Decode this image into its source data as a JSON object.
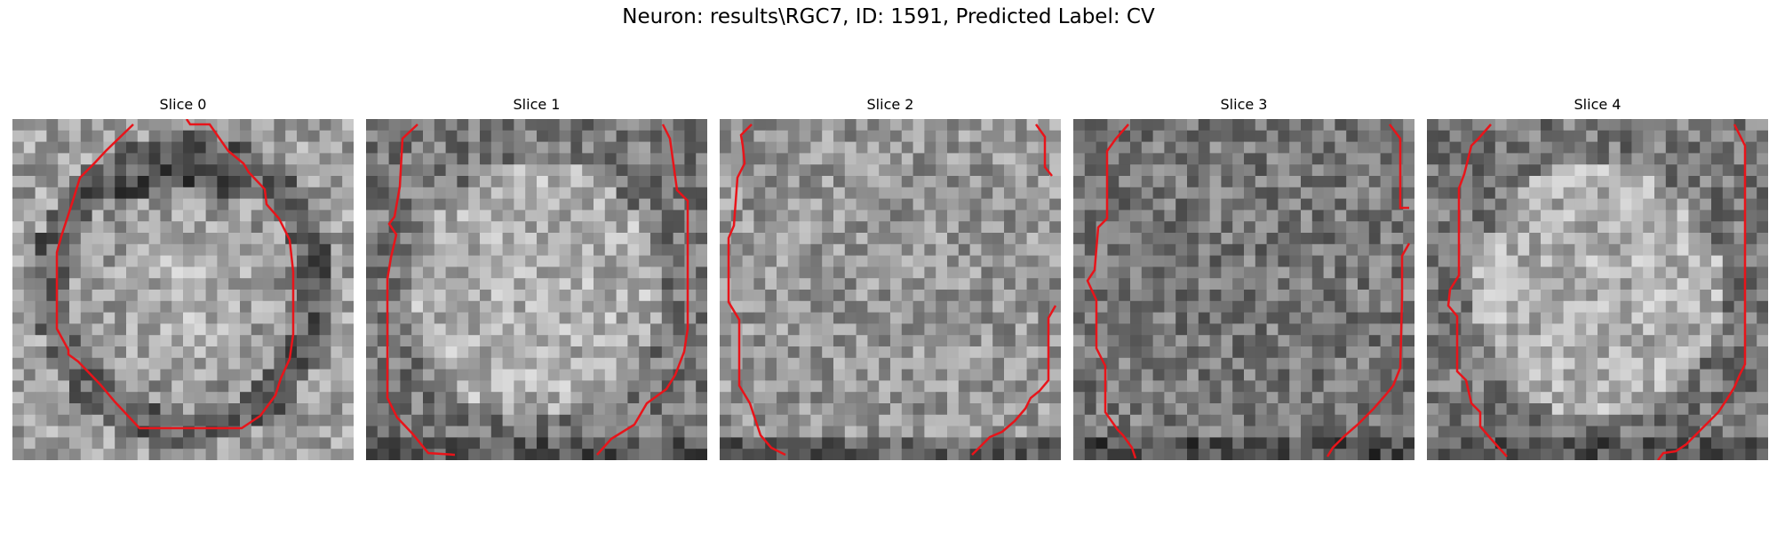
{
  "figure": {
    "title": "Neuron: results\\RGC7, ID: 1591, Predicted Label: CV",
    "contour_color": "#e8141a",
    "colormap": "gray",
    "grid_size": 30
  },
  "slices": [
    {
      "title": "Slice 0",
      "seed": 11,
      "pattern": "ring"
    },
    {
      "title": "Slice 1",
      "seed": 23,
      "pattern": "bright"
    },
    {
      "title": "Slice 2",
      "seed": 37,
      "pattern": "flat"
    },
    {
      "title": "Slice 3",
      "seed": 53,
      "pattern": "dark"
    },
    {
      "title": "Slice 4",
      "seed": 71,
      "pattern": "bright"
    }
  ]
}
